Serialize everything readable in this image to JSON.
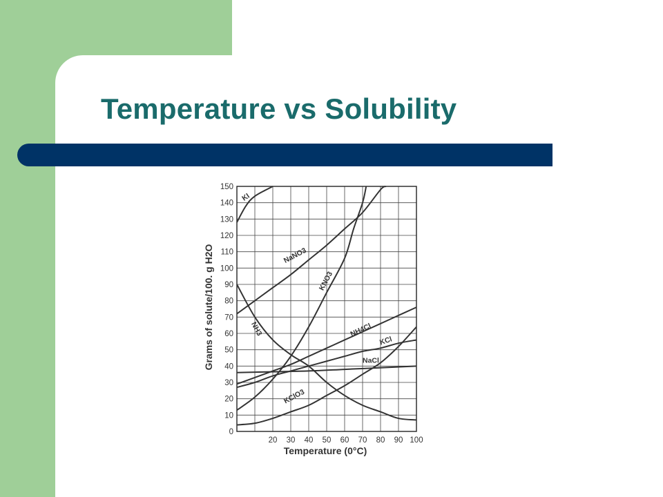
{
  "slide": {
    "title": "Temperature vs Solubility",
    "colors": {
      "title": "#1a6b6b",
      "bar": "#003366",
      "accent_green": "#9fcf98"
    }
  },
  "chart_data": {
    "type": "line",
    "title": "",
    "xlabel": "Temperature (0°C)",
    "ylabel": "Grams of solute/100. g H2O",
    "xlim": [
      0,
      100
    ],
    "ylim": [
      0,
      150
    ],
    "x_ticks": [
      20,
      30,
      40,
      50,
      60,
      70,
      80,
      90,
      100
    ],
    "y_ticks": [
      0,
      10,
      20,
      30,
      40,
      50,
      60,
      70,
      80,
      90,
      100,
      110,
      120,
      130,
      140,
      150
    ],
    "grid": true,
    "series": [
      {
        "name": "KI",
        "label": "KI",
        "points": [
          [
            0,
            128
          ],
          [
            5,
            138
          ],
          [
            10,
            144
          ],
          [
            20,
            150
          ]
        ]
      },
      {
        "name": "NaNO3",
        "label": "NaNO3",
        "points": [
          [
            0,
            72
          ],
          [
            10,
            80
          ],
          [
            20,
            88
          ],
          [
            30,
            96
          ],
          [
            40,
            105
          ],
          [
            50,
            114
          ],
          [
            60,
            124
          ],
          [
            70,
            134
          ],
          [
            80,
            148
          ],
          [
            83,
            150
          ]
        ]
      },
      {
        "name": "KNO3",
        "label": "KNO3",
        "points": [
          [
            0,
            13
          ],
          [
            10,
            21
          ],
          [
            20,
            32
          ],
          [
            30,
            46
          ],
          [
            40,
            64
          ],
          [
            50,
            85
          ],
          [
            60,
            106
          ],
          [
            65,
            124
          ],
          [
            70,
            140
          ],
          [
            72,
            150
          ]
        ]
      },
      {
        "name": "NH3",
        "label": "NH3",
        "points": [
          [
            0,
            90
          ],
          [
            10,
            70
          ],
          [
            20,
            56
          ],
          [
            30,
            47
          ],
          [
            40,
            40
          ],
          [
            50,
            30
          ],
          [
            60,
            22
          ],
          [
            70,
            16
          ],
          [
            80,
            12
          ],
          [
            90,
            8
          ],
          [
            100,
            7
          ]
        ]
      },
      {
        "name": "NH4Cl",
        "label": "NH4Cl",
        "points": [
          [
            0,
            29
          ],
          [
            10,
            33
          ],
          [
            20,
            37
          ],
          [
            30,
            41
          ],
          [
            40,
            46
          ],
          [
            50,
            51
          ],
          [
            60,
            56
          ],
          [
            70,
            61
          ],
          [
            80,
            66
          ],
          [
            90,
            71
          ],
          [
            100,
            76
          ]
        ]
      },
      {
        "name": "KCl",
        "label": "KCl",
        "points": [
          [
            0,
            27
          ],
          [
            10,
            30
          ],
          [
            20,
            34
          ],
          [
            30,
            37
          ],
          [
            40,
            40
          ],
          [
            50,
            43
          ],
          [
            60,
            46
          ],
          [
            70,
            49
          ],
          [
            80,
            51
          ],
          [
            90,
            54
          ],
          [
            100,
            56
          ]
        ]
      },
      {
        "name": "NaCl",
        "label": "NaCl",
        "points": [
          [
            0,
            36
          ],
          [
            20,
            36.5
          ],
          [
            40,
            37
          ],
          [
            60,
            38
          ],
          [
            80,
            39
          ],
          [
            100,
            40
          ]
        ]
      },
      {
        "name": "KClO3",
        "label": "KClO3",
        "points": [
          [
            0,
            4
          ],
          [
            10,
            5
          ],
          [
            20,
            8
          ],
          [
            30,
            12
          ],
          [
            40,
            16
          ],
          [
            50,
            22
          ],
          [
            60,
            28
          ],
          [
            70,
            35
          ],
          [
            80,
            42
          ],
          [
            90,
            52
          ],
          [
            100,
            64
          ]
        ]
      }
    ]
  }
}
